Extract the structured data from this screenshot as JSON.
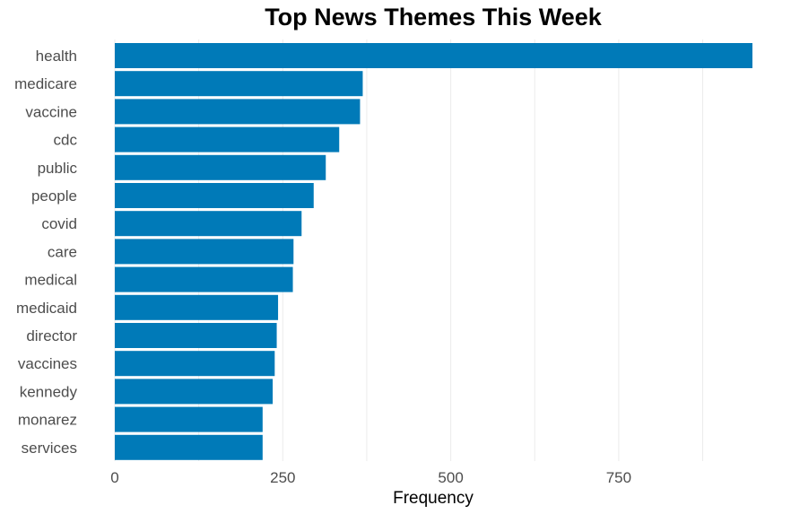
{
  "chart_data": {
    "type": "bar",
    "orientation": "horizontal",
    "title": "Top News Themes This Week",
    "xlabel": "Frequency",
    "ylabel": "",
    "categories": [
      "health",
      "medicare",
      "vaccine",
      "cdc",
      "public",
      "people",
      "covid",
      "care",
      "medical",
      "medicaid",
      "director",
      "vaccines",
      "kennedy",
      "monarez",
      "services"
    ],
    "values": [
      949,
      369,
      365,
      334,
      314,
      296,
      278,
      266,
      265,
      243,
      241,
      238,
      235,
      220,
      220
    ],
    "xlim": [
      0,
      949
    ],
    "xticks": [
      0,
      250,
      500,
      750
    ],
    "xtick_labels": [
      "0",
      "250",
      "500",
      "750"
    ],
    "grid": "vertical major gridlines",
    "legend": "none",
    "bar_color": "#007AB8"
  }
}
